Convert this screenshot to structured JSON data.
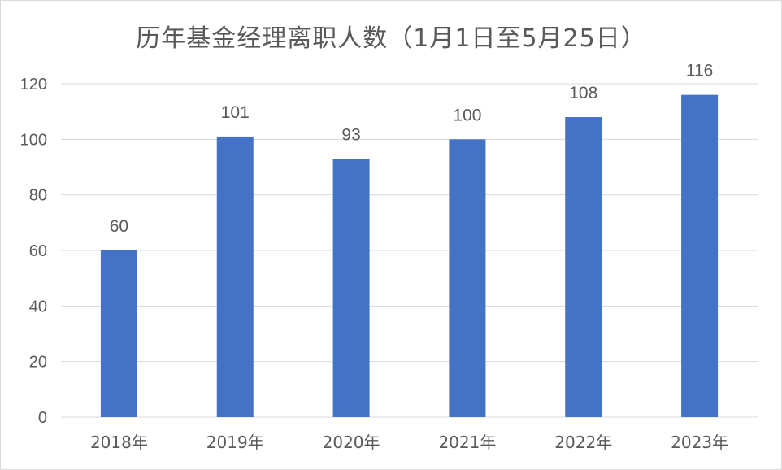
{
  "chart_data": {
    "type": "bar",
    "title": "历年基金经理离职人数（1月1日至5月25日）",
    "categories": [
      "2018年",
      "2019年",
      "2020年",
      "2021年",
      "2022年",
      "2023年"
    ],
    "values": [
      60,
      101,
      93,
      100,
      108,
      116
    ],
    "data_labels": [
      "60",
      "101",
      "93",
      "100",
      "108",
      "116"
    ],
    "y_ticks": [
      "0",
      "20",
      "40",
      "60",
      "80",
      "100",
      "120"
    ],
    "ylim": [
      0,
      120
    ],
    "grid": true,
    "legend": "none",
    "bar_color": "#4472c4",
    "grid_color": "#d9d9d9"
  }
}
